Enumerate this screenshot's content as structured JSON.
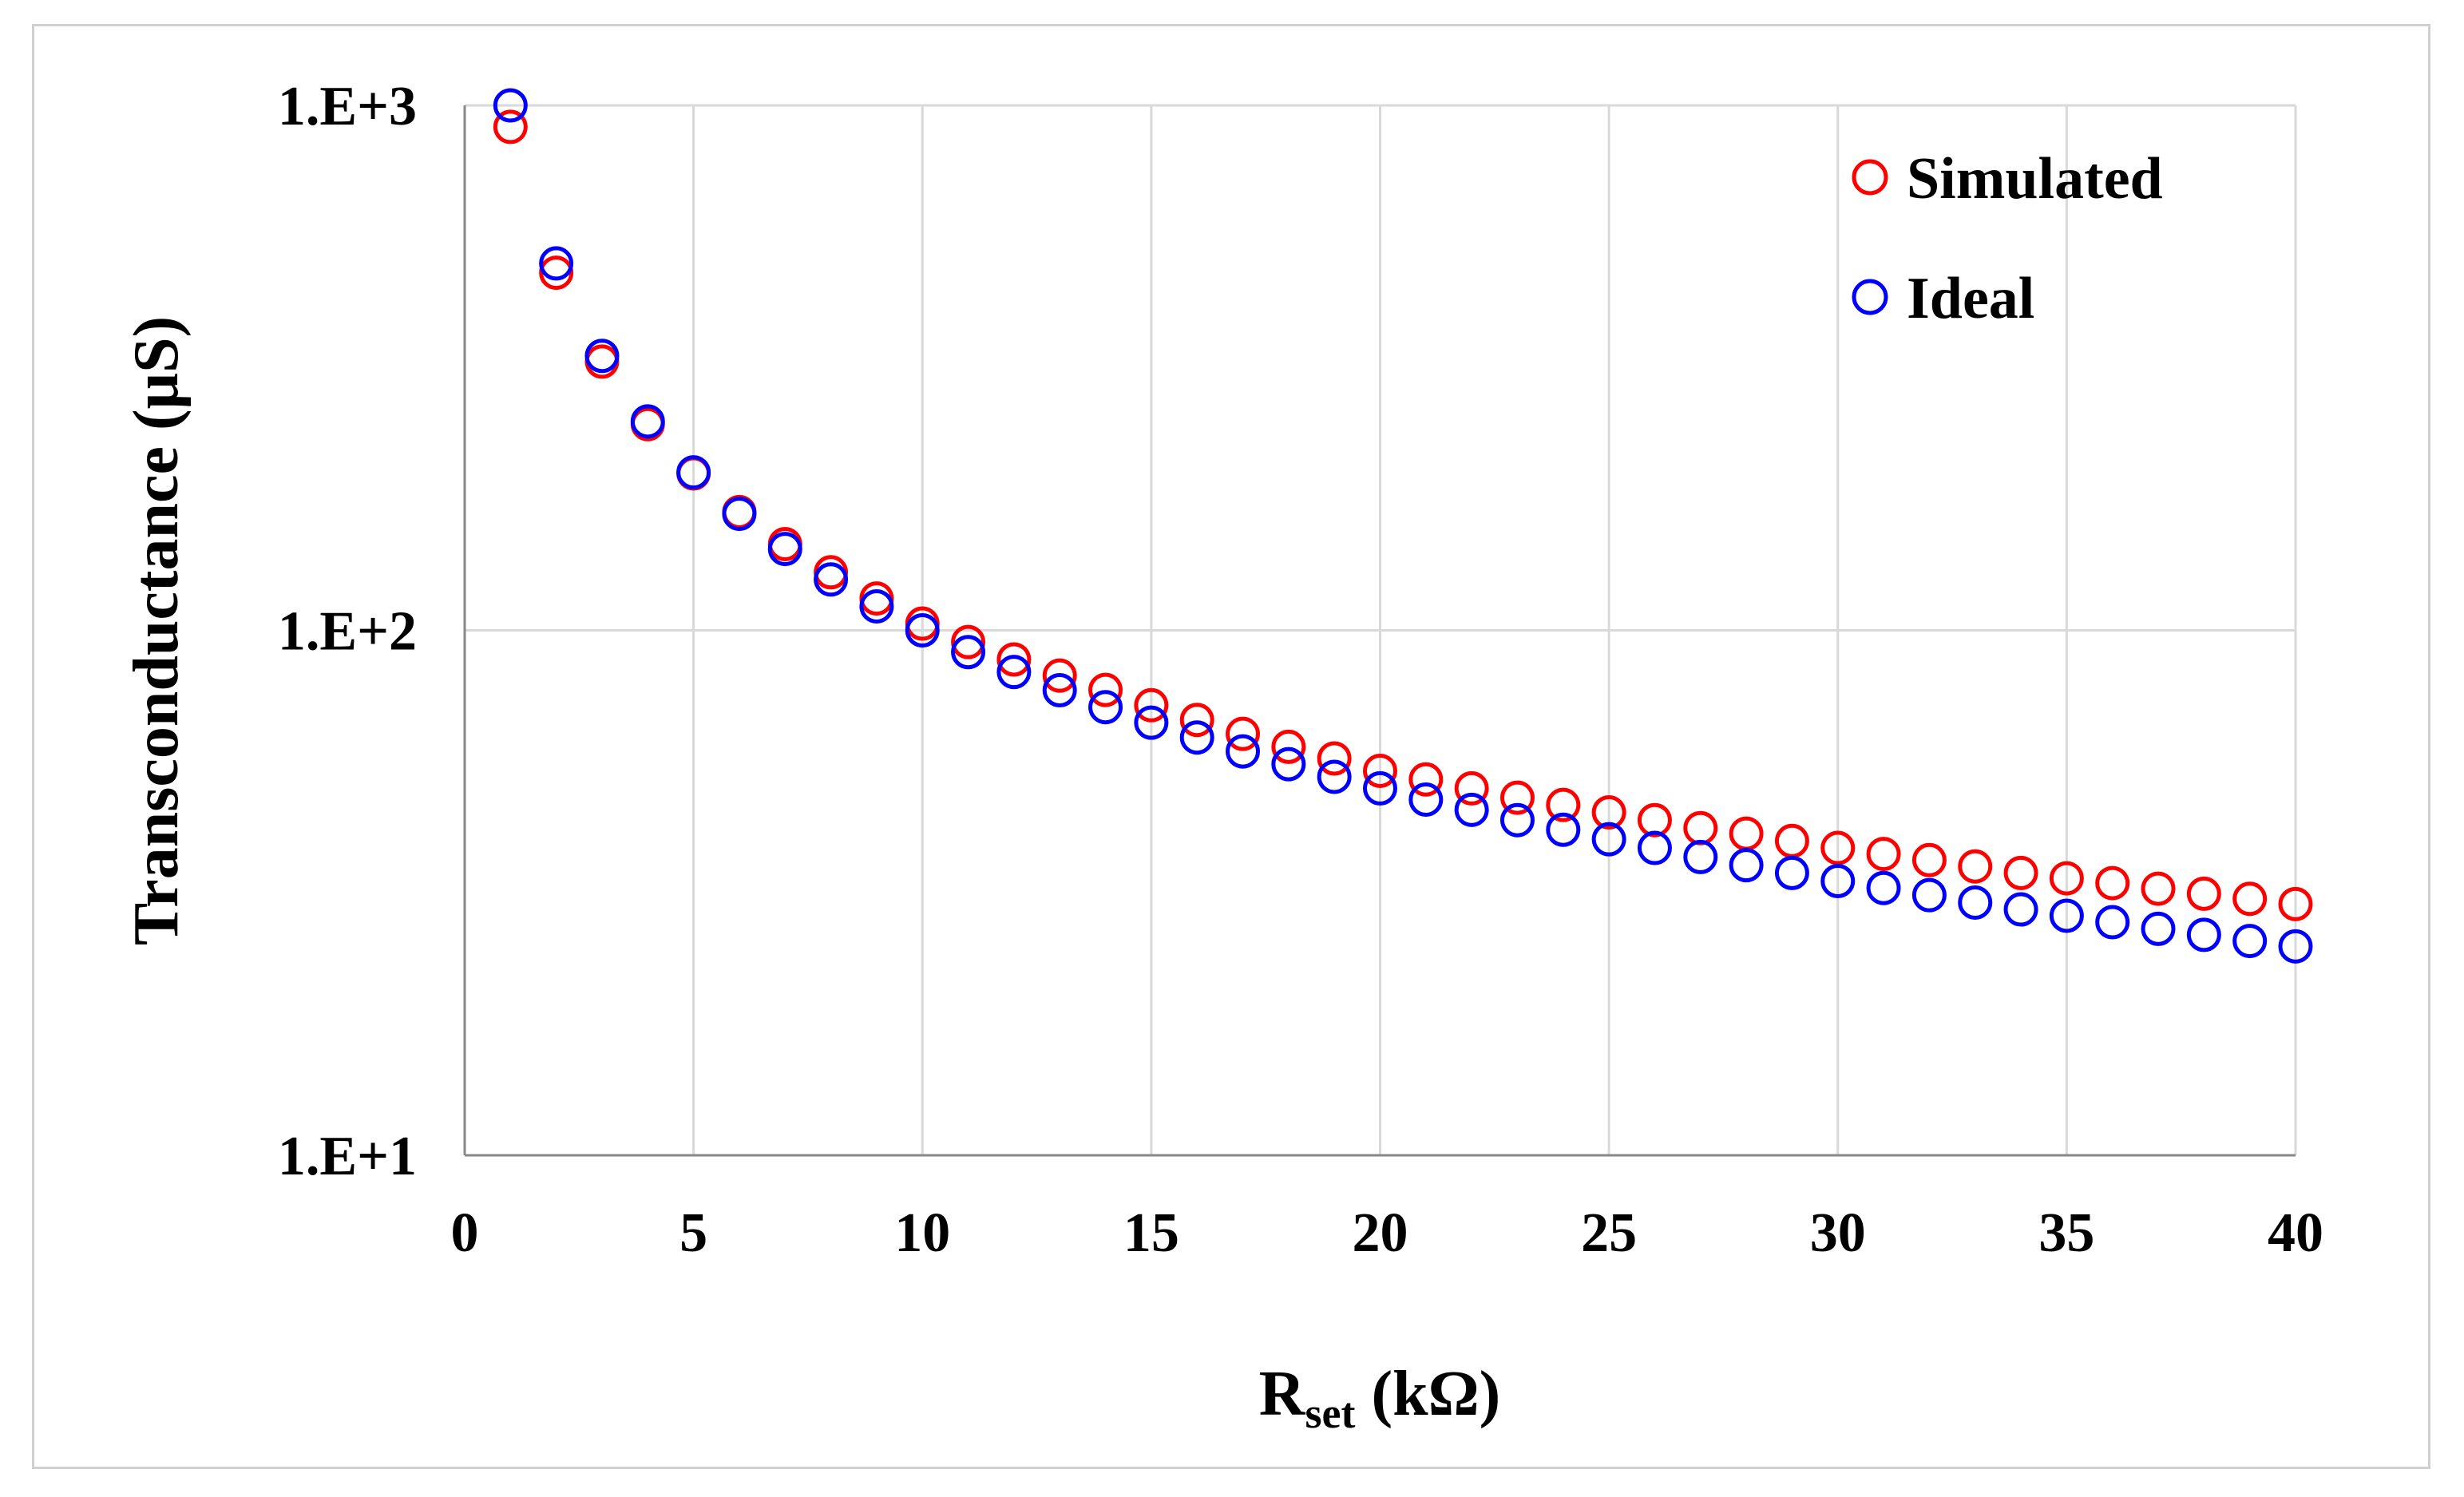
{
  "chart_data": {
    "type": "scatter",
    "title": "",
    "xlabel": "R",
    "xlabel_subscript": "set",
    "xlabel_unit": " (kΩ)",
    "ylabel": "Transconductance (μS)",
    "yscale": "log",
    "xlim": [
      0,
      40
    ],
    "ylim": [
      10,
      1000
    ],
    "grid": true,
    "legend_position": "top-right",
    "x_ticks": [
      "0",
      "5",
      "10",
      "15",
      "20",
      "25",
      "30",
      "35",
      "40"
    ],
    "y_ticks": [
      "1.E+1",
      "1.E+2",
      "1.E+3"
    ],
    "x": [
      1,
      2,
      3,
      4,
      5,
      6,
      7,
      8,
      9,
      10,
      11,
      12,
      13,
      14,
      15,
      16,
      17,
      18,
      19,
      20,
      21,
      22,
      23,
      24,
      25,
      26,
      27,
      28,
      29,
      30,
      31,
      32,
      33,
      34,
      35,
      36,
      37,
      38,
      39,
      40
    ],
    "series": [
      {
        "name": "Simulated",
        "color": "#ff0000",
        "values": [
          910,
          480,
          325,
          247,
          199,
          168,
          146,
          129,
          115,
          103,
          95,
          88,
          82,
          77,
          72,
          67.5,
          63.5,
          60,
          57,
          54,
          52,
          50,
          48,
          46.5,
          45,
          43.5,
          42,
          41,
          39.7,
          38.5,
          37.5,
          36.5,
          35.5,
          34.5,
          33.7,
          33,
          32.2,
          31.5,
          30.8,
          30.1
        ]
      },
      {
        "name": "Ideal",
        "color": "#0000ff",
        "values": [
          1000,
          500,
          333.3,
          250,
          200,
          166.7,
          142.9,
          125,
          111.1,
          100,
          90.9,
          83.3,
          76.9,
          71.4,
          66.7,
          62.5,
          58.8,
          55.6,
          52.6,
          50,
          47.6,
          45.5,
          43.5,
          41.7,
          40,
          38.5,
          37,
          35.7,
          34.5,
          33.3,
          32.3,
          31.3,
          30.3,
          29.4,
          28.6,
          27.8,
          27,
          26.3,
          25.6,
          25
        ]
      }
    ]
  }
}
